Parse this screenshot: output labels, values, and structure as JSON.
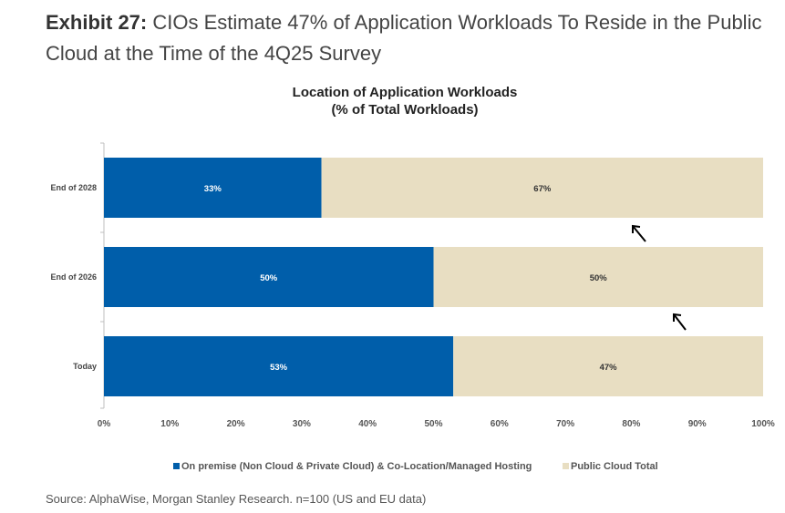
{
  "header": {
    "exhibit_label": "Exhibit 27:",
    "headline": "CIOs Estimate 47% of Application Workloads To Reside in the Public Cloud at the Time of the 4Q25 Survey"
  },
  "chart_data": {
    "type": "bar",
    "orientation": "horizontal",
    "stacked": true,
    "title": "Location of Application Workloads",
    "subtitle": "(% of Total Workloads)",
    "categories": [
      "End of 2028",
      "End of 2026",
      "Today"
    ],
    "series": [
      {
        "name": "On premise (Non Cloud & Private Cloud) & Co-Location/Managed Hosting",
        "color": "#005eaa",
        "values": [
          33,
          50,
          53
        ],
        "labels": [
          "33%",
          "50%",
          "53%"
        ]
      },
      {
        "name": "Public Cloud Total",
        "color": "#e8dec2",
        "values": [
          67,
          50,
          47
        ],
        "labels": [
          "67%",
          "50%",
          "47%"
        ]
      }
    ],
    "xlim": [
      0,
      100
    ],
    "xticks": [
      "0%",
      "10%",
      "20%",
      "30%",
      "40%",
      "50%",
      "60%",
      "70%",
      "80%",
      "90%",
      "100%"
    ],
    "legend_position": "bottom"
  },
  "source": "Source: AlphaWise, Morgan Stanley Research. n=100 (US and EU data)"
}
